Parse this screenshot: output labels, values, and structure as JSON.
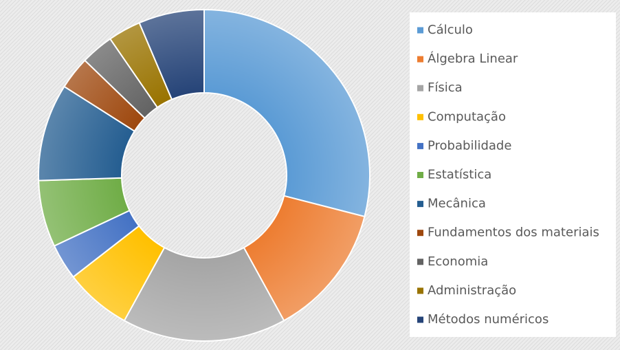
{
  "chart_data": {
    "type": "donut",
    "categories": [
      "Cálculo",
      "Álgebra Linear",
      "Física",
      "Computação",
      "Probabilidade",
      "Estatística",
      "Mecânica",
      "Fundamentos dos materiais",
      "Economia",
      "Administração",
      "Métodos numéricos"
    ],
    "values": [
      29,
      13,
      16,
      6.5,
      3.5,
      6.5,
      9.5,
      3.2,
      3.2,
      3.2,
      6.4
    ],
    "colors": [
      "#5b9bd5",
      "#ed7d31",
      "#a5a5a5",
      "#ffc000",
      "#4472c4",
      "#70ad47",
      "#255e91",
      "#9e480e",
      "#636363",
      "#997300",
      "#264478"
    ],
    "legend": "right"
  }
}
